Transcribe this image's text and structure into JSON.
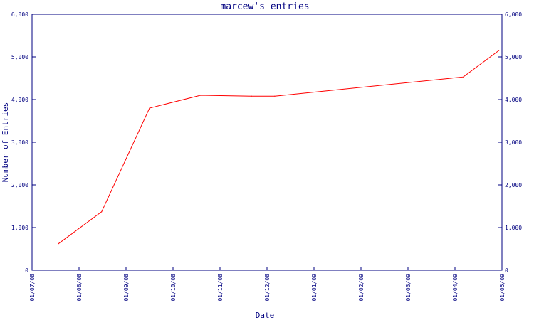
{
  "chart_data": {
    "type": "line",
    "title": "marcew's entries",
    "xlabel": "Date",
    "ylabel": "Number of Entries",
    "x_tick_labels": [
      "01/07/08",
      "01/08/08",
      "01/09/08",
      "01/10/08",
      "01/11/08",
      "01/12/08",
      "01/01/09",
      "01/02/09",
      "01/03/09",
      "01/04/09",
      "01/05/09"
    ],
    "y_tick_labels": [
      "0",
      "1,000",
      "2,000",
      "3,000",
      "4,000",
      "5,000",
      "6,000"
    ],
    "ylim": [
      0,
      6000
    ],
    "xlim": [
      "2008-07-01",
      "2009-05-01"
    ],
    "series": [
      {
        "color": "#ff0000",
        "points": [
          {
            "x": "2008-07-18",
            "y": 620
          },
          {
            "x": "2008-08-15",
            "y": 1370
          },
          {
            "x": "2008-09-15",
            "y": 3800
          },
          {
            "x": "2008-10-18",
            "y": 4100
          },
          {
            "x": "2008-11-20",
            "y": 4080
          },
          {
            "x": "2008-12-05",
            "y": 4080
          },
          {
            "x": "2009-04-06",
            "y": 4530
          },
          {
            "x": "2009-04-29",
            "y": 5150
          }
        ]
      }
    ],
    "grid": false,
    "axis_color": "#000080"
  }
}
